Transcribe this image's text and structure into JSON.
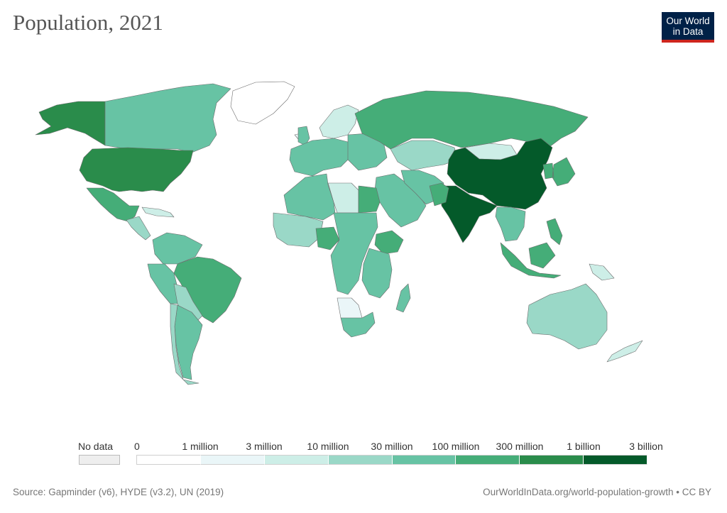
{
  "header": {
    "title": "Population, 2021",
    "logo_line1": "Our World",
    "logo_line2": "in Data"
  },
  "legend": {
    "no_data_label": "No data",
    "ticks": [
      "0",
      "1 million",
      "3 million",
      "10 million",
      "30 million",
      "100 million",
      "300 million",
      "1 billion",
      "3 billion"
    ],
    "bin_colors": [
      "#ffffff",
      "#eaf6f8",
      "#cdeee7",
      "#9ad8c7",
      "#67c3a4",
      "#45ad78",
      "#2a8c4b",
      "#045a2a"
    ],
    "no_data_color": "#eeeeee"
  },
  "footer": {
    "source": "Source: Gapminder (v6), HYDE (v3.2), UN (2019)",
    "url": "OurWorldInData.org/world-population-growth • CC BY"
  },
  "map_regions": [
    {
      "name": "alaska",
      "bin": 6
    },
    {
      "name": "canada",
      "bin": 4
    },
    {
      "name": "greenland",
      "bin": 0
    },
    {
      "name": "usa",
      "bin": 6
    },
    {
      "name": "mexico",
      "bin": 5
    },
    {
      "name": "central-america",
      "bin": 3
    },
    {
      "name": "caribbean",
      "bin": 2
    },
    {
      "name": "colombia-venezuela",
      "bin": 4
    },
    {
      "name": "peru-ecuador",
      "bin": 4
    },
    {
      "name": "brazil",
      "bin": 5
    },
    {
      "name": "bolivia-paraguay",
      "bin": 3
    },
    {
      "name": "argentina",
      "bin": 4
    },
    {
      "name": "chile",
      "bin": 3
    },
    {
      "name": "iceland",
      "bin": 1
    },
    {
      "name": "uk-ireland",
      "bin": 4
    },
    {
      "name": "western-europe",
      "bin": 4
    },
    {
      "name": "scandinavia",
      "bin": 2
    },
    {
      "name": "eastern-europe",
      "bin": 4
    },
    {
      "name": "russia",
      "bin": 5
    },
    {
      "name": "kazakhstan",
      "bin": 3
    },
    {
      "name": "mongolia",
      "bin": 2
    },
    {
      "name": "china",
      "bin": 7
    },
    {
      "name": "india",
      "bin": 7
    },
    {
      "name": "middle-east",
      "bin": 4
    },
    {
      "name": "iran-afghanistan",
      "bin": 4
    },
    {
      "name": "pakistan",
      "bin": 5
    },
    {
      "name": "southeast-asia",
      "bin": 4
    },
    {
      "name": "indonesia",
      "bin": 5
    },
    {
      "name": "japan-korea",
      "bin": 5
    },
    {
      "name": "philippines",
      "bin": 5
    },
    {
      "name": "papua-new-guinea",
      "bin": 2
    },
    {
      "name": "australia",
      "bin": 3
    },
    {
      "name": "new-zealand",
      "bin": 2
    },
    {
      "name": "north-africa",
      "bin": 4
    },
    {
      "name": "libya",
      "bin": 2
    },
    {
      "name": "egypt",
      "bin": 5
    },
    {
      "name": "west-africa",
      "bin": 3
    },
    {
      "name": "nigeria",
      "bin": 5
    },
    {
      "name": "central-africa",
      "bin": 4
    },
    {
      "name": "ethiopia",
      "bin": 5
    },
    {
      "name": "east-africa",
      "bin": 4
    },
    {
      "name": "namibia-botswana",
      "bin": 1
    },
    {
      "name": "southern-africa",
      "bin": 4
    },
    {
      "name": "madagascar",
      "bin": 4
    }
  ]
}
